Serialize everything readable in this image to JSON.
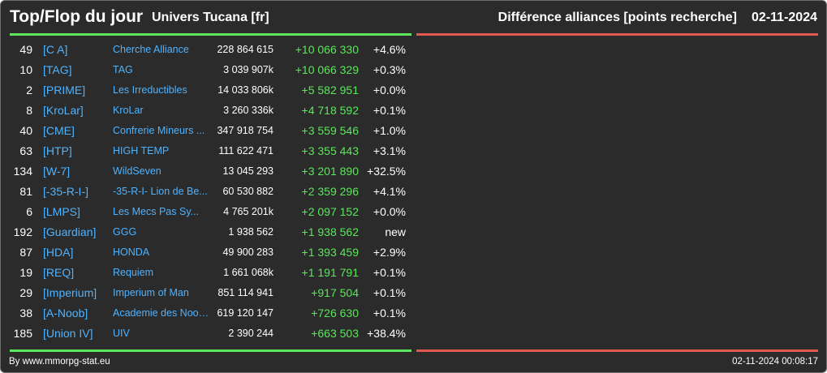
{
  "header": {
    "title": "Top/Flop du jour",
    "universe": "Univers Tucana [fr]",
    "right_title": "Différence alliances [points recherche]",
    "date": "02-11-2024"
  },
  "colors": {
    "background": "#2b2b2b",
    "top_bar": "#5ce65c",
    "flop_bar": "#e05a4f",
    "link": "#4fb3ff",
    "gain": "#5ce65c"
  },
  "top_rows": [
    {
      "rank": "49",
      "tag": "[C A]",
      "name": "Cherche Alliance",
      "points": "228 864 615",
      "diff": "+10 066 330",
      "pct": "+4.6%"
    },
    {
      "rank": "10",
      "tag": "[TAG]",
      "name": "TAG",
      "points": "3 039 907k",
      "diff": "+10 066 329",
      "pct": "+0.3%"
    },
    {
      "rank": "2",
      "tag": "[PRIME]",
      "name": "Les Irreductibles",
      "points": "14 033 806k",
      "diff": "+5 582 951",
      "pct": "+0.0%"
    },
    {
      "rank": "8",
      "tag": "[KroLar]",
      "name": "KroLar",
      "points": "3 260 336k",
      "diff": "+4 718 592",
      "pct": "+0.1%"
    },
    {
      "rank": "40",
      "tag": "[CME]",
      "name": "Confrerie Mineurs ...",
      "points": "347 918 754",
      "diff": "+3 559 546",
      "pct": "+1.0%"
    },
    {
      "rank": "63",
      "tag": "[HTP]",
      "name": "HIGH TEMP",
      "points": "111 622 471",
      "diff": "+3 355 443",
      "pct": "+3.1%"
    },
    {
      "rank": "134",
      "tag": "[W-7]",
      "name": "WildSeven",
      "points": "13 045 293",
      "diff": "+3 201 890",
      "pct": "+32.5%"
    },
    {
      "rank": "81",
      "tag": "[-35-R-I-]",
      "name": "-35-R-I- Lion de Be...",
      "points": "60 530 882",
      "diff": "+2 359 296",
      "pct": "+4.1%"
    },
    {
      "rank": "6",
      "tag": "[LMPS]",
      "name": "Les Mecs Pas Sy...",
      "points": "4 765 201k",
      "diff": "+2 097 152",
      "pct": "+0.0%"
    },
    {
      "rank": "192",
      "tag": "[Guardian]",
      "name": "GGG",
      "points": "1 938 562",
      "diff": "+1 938 562",
      "pct": "new"
    },
    {
      "rank": "87",
      "tag": "[HDA]",
      "name": "HONDA",
      "points": "49 900 283",
      "diff": "+1 393 459",
      "pct": "+2.9%"
    },
    {
      "rank": "19",
      "tag": "[REQ]",
      "name": "Requiem",
      "points": "1 661 068k",
      "diff": "+1 191 791",
      "pct": "+0.1%"
    },
    {
      "rank": "29",
      "tag": "[Imperium]",
      "name": "Imperium of Man",
      "points": "851 114 941",
      "diff": "+917 504",
      "pct": "+0.1%"
    },
    {
      "rank": "38",
      "tag": "[A-Noob]",
      "name": "Academie des Noob...",
      "points": "619 120 147",
      "diff": "+726 630",
      "pct": "+0.1%"
    },
    {
      "rank": "185",
      "tag": "[Union IV]",
      "name": "UIV",
      "points": "2 390 244",
      "diff": "+663 503",
      "pct": "+38.4%"
    }
  ],
  "footer": {
    "credit": "By www.mmorpg-stat.eu",
    "timestamp": "02-11-2024 00:08:17"
  }
}
